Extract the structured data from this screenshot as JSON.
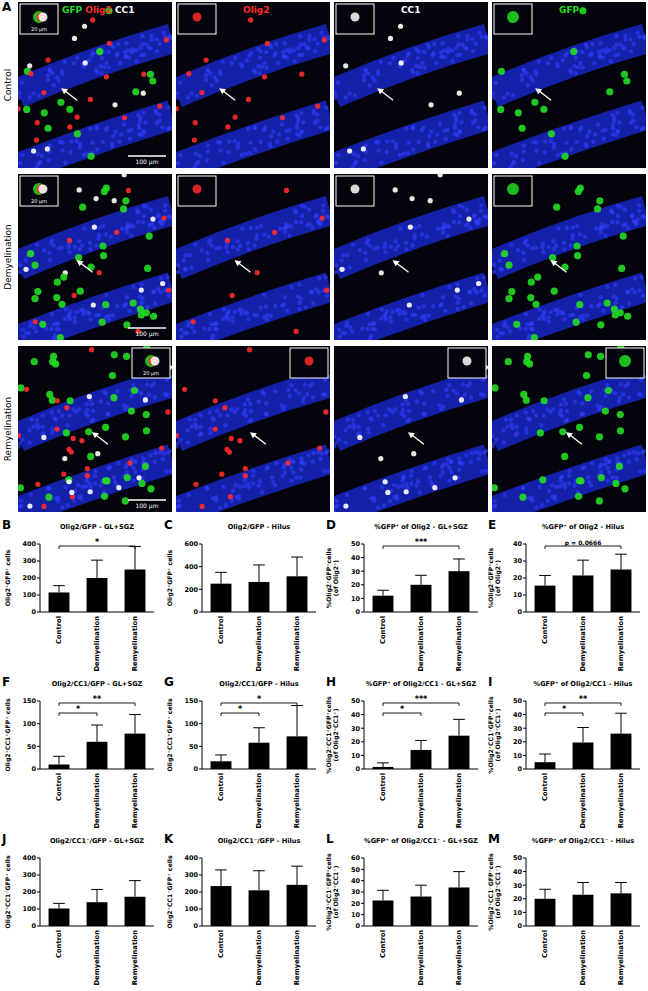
{
  "panel_a": {
    "label": "A",
    "rows": [
      "Control",
      "Demyelination",
      "Remyelination"
    ],
    "channels": [
      {
        "name": "GFP",
        "color": "#22dd22"
      },
      {
        "name": "Olig2",
        "color": "#ff2a2a"
      },
      {
        "name": "CC1",
        "color": "#ffffff"
      }
    ],
    "columns": [
      [
        "GFP",
        "Olig2",
        "CC1"
      ],
      [
        "Olig2"
      ],
      [
        "CC1"
      ],
      [
        "GFP"
      ]
    ],
    "scale_bar": "100 µm",
    "inset_scale_bar": "20 µm"
  },
  "chart_data": [
    {
      "type": "bar",
      "panel": "B",
      "title": "Olig2/GFP - GL+SGZ",
      "y_label": "Olig2⁺GFP⁺ cells",
      "categories": [
        "Control",
        "Demyelination",
        "Remyelination"
      ],
      "values": [
        115,
        200,
        250
      ],
      "errors": [
        40,
        105,
        135
      ],
      "color": "#000000",
      "ylim": [
        0,
        400
      ],
      "yticks": [
        0,
        100,
        200,
        300,
        400
      ],
      "annotations": [
        {
          "between": [
            "Control",
            "Remyelination"
          ],
          "text": "*"
        }
      ]
    },
    {
      "type": "bar",
      "panel": "C",
      "title": "Olig2/GFP - Hilus",
      "y_label": "Olig2⁺GFP⁺ cells",
      "categories": [
        "Control",
        "Demyelination",
        "Remyelination"
      ],
      "values": [
        250,
        265,
        315
      ],
      "errors": [
        100,
        150,
        170
      ],
      "color": "#000000",
      "ylim": [
        0,
        600
      ],
      "yticks": [
        0,
        200,
        400,
        600
      ],
      "annotations": []
    },
    {
      "type": "bar",
      "panel": "D",
      "title": "%GFP⁺ of Olig2 - GL+SGZ",
      "y_label": "%Olig2⁺GFP⁺cells (of Olig2⁺)",
      "categories": [
        "Control",
        "Demyelination",
        "Remyelination"
      ],
      "values": [
        12,
        20,
        30
      ],
      "errors": [
        4,
        7,
        9
      ],
      "color": "#000000",
      "ylim": [
        0,
        50
      ],
      "yticks": [
        0,
        10,
        20,
        30,
        40,
        50
      ],
      "annotations": [
        {
          "between": [
            "Control",
            "Remyelination"
          ],
          "text": "***"
        }
      ]
    },
    {
      "type": "bar",
      "panel": "E",
      "title": "%GFP⁺ of Olig2 - Hilus",
      "y_label": "%Olig2⁺GFP⁺cells (of Olig2⁺)",
      "categories": [
        "Control",
        "Demyelination",
        "Remyelination"
      ],
      "values": [
        15.5,
        21.5,
        25
      ],
      "errors": [
        6,
        9,
        9
      ],
      "color": "#000000",
      "ylim": [
        0,
        40
      ],
      "yticks": [
        0,
        10,
        20,
        30,
        40
      ],
      "annotations": [
        {
          "between": [
            "Control",
            "Remyelination"
          ],
          "text": "p = 0.0666"
        }
      ]
    },
    {
      "type": "bar",
      "panel": "F",
      "title": "Olig2/CC1/GFP - GL+SGZ",
      "y_label": "Olig2⁺CC1⁺GFP⁺ cells",
      "categories": [
        "Control",
        "Demyelination",
        "Remyelination"
      ],
      "values": [
        10,
        60,
        78
      ],
      "errors": [
        18,
        37,
        42
      ],
      "color": "#000000",
      "ylim": [
        0,
        150
      ],
      "yticks": [
        0,
        50,
        100,
        150
      ],
      "annotations": [
        {
          "between": [
            "Control",
            "Demyelination"
          ],
          "text": "*"
        },
        {
          "between": [
            "Control",
            "Remyelination"
          ],
          "text": "**"
        }
      ]
    },
    {
      "type": "bar",
      "panel": "G",
      "title": "Olig2/CC1/GFP - Hilus",
      "y_label": "Olig2⁺CC1⁺GFP⁺ cells",
      "categories": [
        "Control",
        "Demyelination",
        "Remyelination"
      ],
      "values": [
        17,
        58,
        72
      ],
      "errors": [
        14,
        33,
        68
      ],
      "color": "#000000",
      "ylim": [
        0,
        150
      ],
      "yticks": [
        0,
        50,
        100,
        150
      ],
      "annotations": [
        {
          "between": [
            "Control",
            "Demyelination"
          ],
          "text": "*"
        },
        {
          "between": [
            "Control",
            "Remyelination"
          ],
          "text": "*"
        }
      ]
    },
    {
      "type": "bar",
      "panel": "H",
      "title": "%GFP⁺ of Olig2/CC1 - GL+SGZ",
      "y_label": "%Olig2⁺CC1⁺GFP⁺cells (of Olig2⁺CC1⁺)",
      "categories": [
        "Control",
        "Demyelination",
        "Remyelination"
      ],
      "values": [
        1.5,
        14,
        24.5
      ],
      "errors": [
        3,
        7,
        12
      ],
      "color": "#000000",
      "ylim": [
        0,
        50
      ],
      "yticks": [
        0,
        10,
        20,
        30,
        40,
        50
      ],
      "annotations": [
        {
          "between": [
            "Control",
            "Demyelination"
          ],
          "text": "*"
        },
        {
          "between": [
            "Control",
            "Remyelination"
          ],
          "text": "***"
        }
      ]
    },
    {
      "type": "bar",
      "panel": "I",
      "title": "%GFP⁺ of Olig2/CC1 - Hilus",
      "y_label": "%Olig2⁺CC1⁺GFP⁺cells (of Olig2⁺CC1⁺)",
      "categories": [
        "Control",
        "Demyelination",
        "Remyelination"
      ],
      "values": [
        5,
        19.5,
        26
      ],
      "errors": [
        6,
        11,
        15
      ],
      "color": "#000000",
      "ylim": [
        0,
        50
      ],
      "yticks": [
        0,
        10,
        20,
        30,
        40,
        50
      ],
      "annotations": [
        {
          "between": [
            "Control",
            "Demyelination"
          ],
          "text": "*"
        },
        {
          "between": [
            "Control",
            "Remyelination"
          ],
          "text": "**"
        }
      ]
    },
    {
      "type": "bar",
      "panel": "J",
      "title": "Olig2/CC1⁻/GFP - GL+SGZ",
      "y_label": "Olig2⁺CC1⁻GFP⁺ cells",
      "categories": [
        "Control",
        "Demyelination",
        "Remyelination"
      ],
      "values": [
        103,
        140,
        172
      ],
      "errors": [
        30,
        75,
        95
      ],
      "color": "#000000",
      "ylim": [
        0,
        400
      ],
      "yticks": [
        0,
        100,
        200,
        300,
        400
      ],
      "annotations": []
    },
    {
      "type": "bar",
      "panel": "K",
      "title": "Olig2/CC1⁻/GFP - Hilus",
      "y_label": "Olig2⁺CC1⁻GFP⁺ cells",
      "categories": [
        "Control",
        "Demyelination",
        "Remyelination"
      ],
      "values": [
        235,
        210,
        242
      ],
      "errors": [
        95,
        115,
        110
      ],
      "color": "#000000",
      "ylim": [
        0,
        400
      ],
      "yticks": [
        0,
        100,
        200,
        300,
        400
      ],
      "annotations": []
    },
    {
      "type": "bar",
      "panel": "L",
      "title": "%GFP⁺ of Olig2/CC1⁻ - GL+SGZ",
      "y_label": "%Olig2⁺CC1⁻GFP⁺cells (of Olig2⁺CC1⁻)",
      "categories": [
        "Control",
        "Demyelination",
        "Remyelination"
      ],
      "values": [
        22.5,
        26,
        34
      ],
      "errors": [
        9,
        10,
        14
      ],
      "color": "#000000",
      "ylim": [
        0,
        60
      ],
      "yticks": [
        0,
        10,
        20,
        30,
        40,
        50,
        60
      ],
      "annotations": []
    },
    {
      "type": "bar",
      "panel": "M",
      "title": "%GFP⁺ of Olig2/CC1⁻ - Hilus",
      "y_label": "%Olig2⁺CC1⁻GFP⁺cells (of Olig2⁺CC1⁻)",
      "categories": [
        "Control",
        "Demyelination",
        "Remyelination"
      ],
      "values": [
        20,
        23,
        24
      ],
      "errors": [
        7,
        9,
        8
      ],
      "color": "#000000",
      "ylim": [
        0,
        50
      ],
      "yticks": [
        0,
        10,
        20,
        30,
        40,
        50
      ],
      "annotations": []
    }
  ]
}
